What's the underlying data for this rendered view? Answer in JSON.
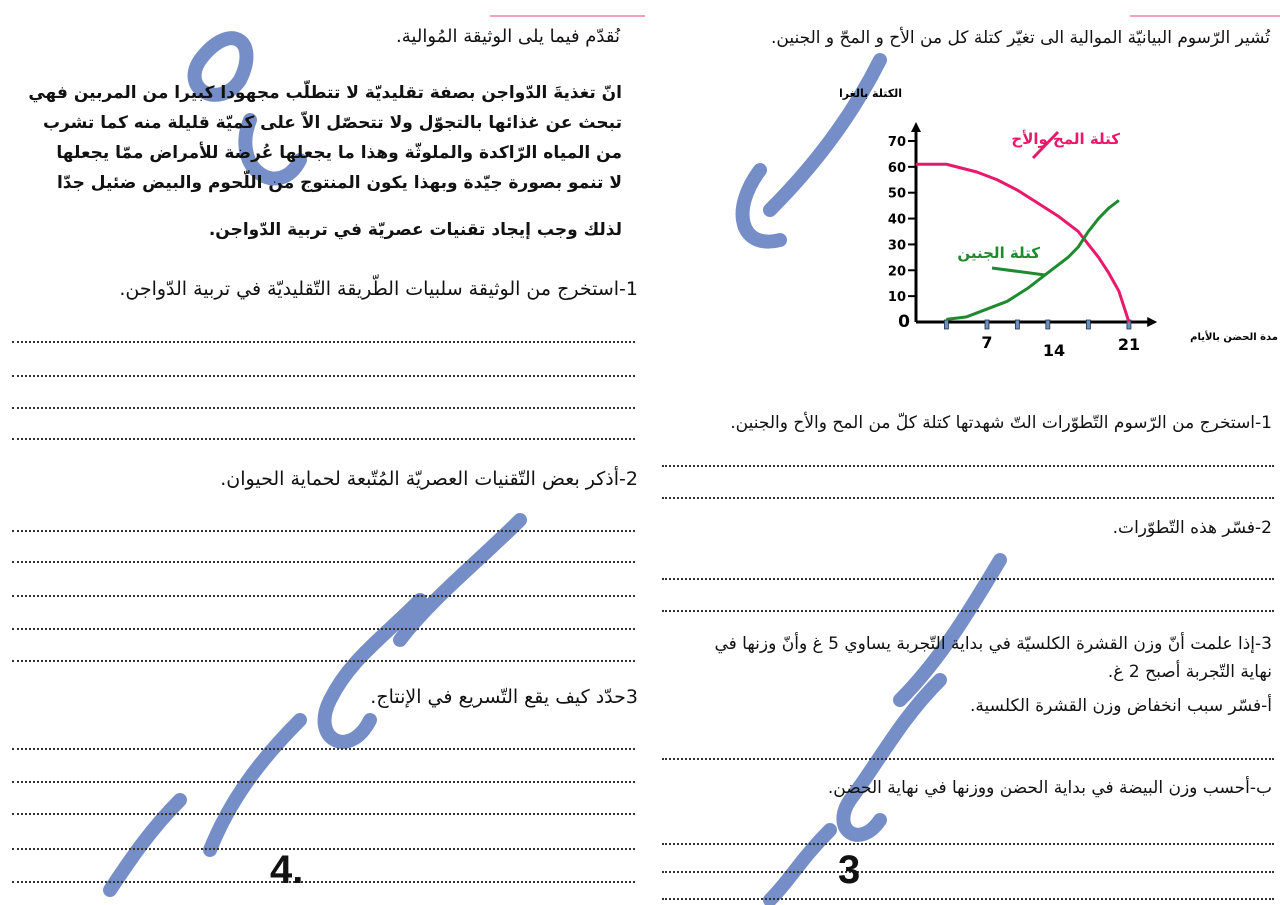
{
  "left_page": {
    "intro": "نُقدّم فيما يلى الوثيقة المُوالية.",
    "document_lines": [
      "انّ تغذيةَ الدّواجن بصفة تقليديّة لا تتطلّب مجهودا كبيرا من المربين فهي",
      "تبحث عن غذائها بالتجوّل ولا تتحصّل الاّ على كميّة قليلة منه كما تشرب",
      "من المياه الرّاكدة والملوثّة وهذا ما يجعلها عُرضة للأمراض ممّا يجعلها",
      "لا تنمو بصورة جيّدة وبهذا يكون المنتوج من اللّحوم والبيض ضئيل جدّا",
      "لذلك وجب إيجاد تقنيات عصريّة في تربية الدّواجن."
    ],
    "q1": "1-استخرج من الوثيقة سلبيات الطّريقة التّقليديّة في تربية الدّواجن.",
    "q2": "2-أذكر بعض التّقنيات العصريّة المُتّبعة لحماية الحيوان.",
    "q3": "3حدّد كيف يقع التّسريع في الإنتاج.",
    "page_number": "4."
  },
  "right_page": {
    "intro": "تُشير الرّسوم البيانيّة الموالية الى تغيّر كتلة كل من الأح و المحّ و الجنين.",
    "q1": "1-استخرج من الرّسوم التّطوّرات التّ شهدتها كتلة كلّ من المح والأح والجنين.",
    "q2": "2-فسّر هذه التّطوّرات.",
    "q3_line1": "3-إذا علمت أنّ وزن القشرة الكلسيّة في بداية التّجربة يساوي 5 غ وأنّ وزنها في",
    "q3_line2": "نهاية التّجربة أصبح 2 غ.",
    "qa": "أ-فسّر سبب انخفاض وزن القشرة الكلسية.",
    "qb": "ب-أحسب وزن البيضة في بداية الحضن ووزنها في نهاية الحضن.",
    "page_number": "3"
  },
  "watermark": "كريمة الطاهري",
  "chart_data": {
    "type": "line",
    "title": "",
    "ylabel": "الكتلة بالغرام",
    "xlabel": "مدة الحضن بالأيام",
    "ylim": [
      0,
      75
    ],
    "xlim": [
      0,
      23
    ],
    "y_ticks": [
      0,
      10,
      20,
      30,
      40,
      50,
      60,
      70
    ],
    "x_tick_marks": [
      3,
      7,
      10,
      13,
      17,
      21
    ],
    "x_tick_labels": [
      "7",
      "14",
      "21"
    ],
    "grid": false,
    "series": [
      {
        "name": "كتلة المح والأح",
        "color": "#e8196b",
        "x": [
          0,
          3,
          6,
          8,
          10,
          12,
          14,
          16,
          17,
          18,
          19,
          20,
          21
        ],
        "y": [
          61,
          61,
          58,
          55,
          51,
          46,
          41,
          35,
          30,
          25,
          19,
          12,
          0
        ]
      },
      {
        "name": "كتلة الجنين",
        "color": "#1f8a2e",
        "x": [
          3,
          5,
          7,
          9,
          11,
          13,
          15,
          16,
          17,
          18,
          19,
          20
        ],
        "y": [
          1,
          2,
          5,
          8,
          13,
          19,
          25,
          29,
          35,
          40,
          44,
          47
        ]
      }
    ]
  }
}
